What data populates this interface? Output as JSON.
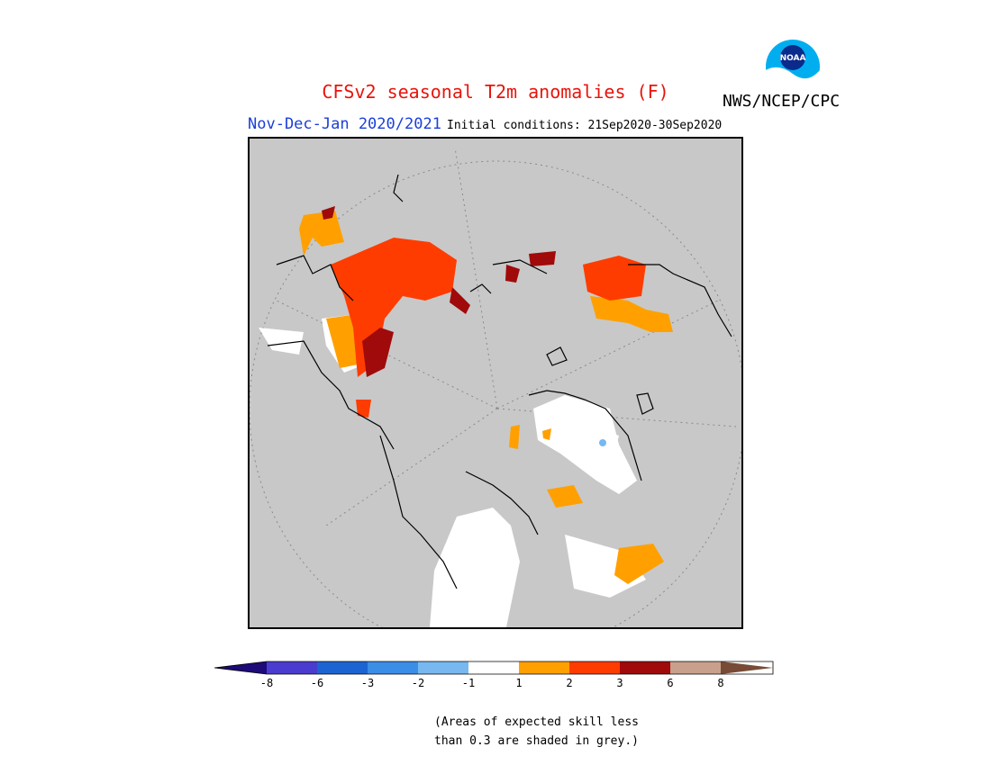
{
  "header": {
    "title": "CFSv2 seasonal T2m anomalies (F)",
    "organization": "NWS/NCEP/CPC",
    "logo_text": "NOAA",
    "season": "Nov-Dec-Jan 2020/2021",
    "initial_conditions": "Initial conditions: 21Sep2020-30Sep2020"
  },
  "map": {
    "projection": "north polar stereographic",
    "background_color": "#c8c8c8"
  },
  "legend": {
    "bins": [
      {
        "color": "#1e0a78"
      },
      {
        "color": "#4a3ccf"
      },
      {
        "color": "#1c64d2"
      },
      {
        "color": "#3a8ee6"
      },
      {
        "color": "#78b8f0"
      },
      {
        "color": "#ffffff"
      },
      {
        "color": "#ffa000"
      },
      {
        "color": "#ff3c00"
      },
      {
        "color": "#a00a0a"
      },
      {
        "color": "#c8a08c"
      },
      {
        "color": "#784b37"
      }
    ],
    "tick_labels": [
      "-8",
      "-6",
      "-3",
      "-2",
      "-1",
      "1",
      "2",
      "3",
      "6",
      "8"
    ]
  },
  "footnote": {
    "line1": "(Areas of expected skill less",
    "line2": "than 0.3 are shaded in grey.)"
  },
  "colors": {
    "warm_1_2": "#ffa000",
    "warm_2_3": "#ff3c00",
    "warm_3_6": "#a00a0a",
    "neutral": "#ffffff",
    "cool_1_2": "#78b8f0",
    "no_skill": "#c8c8c8"
  }
}
